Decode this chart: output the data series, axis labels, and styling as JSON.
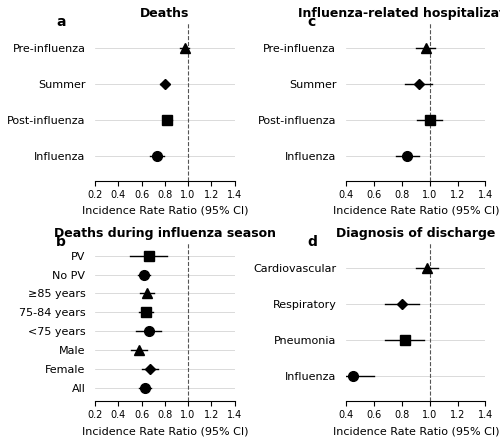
{
  "panel_a": {
    "title": "Deaths",
    "label": "a",
    "categories": [
      "Pre-influenza",
      "Summer",
      "Post-influenza",
      "Influenza"
    ],
    "markers": [
      "^",
      "D",
      "s",
      "o"
    ],
    "point": [
      0.97,
      0.8,
      0.82,
      0.73
    ],
    "ci_low": [
      0.93,
      0.76,
      0.78,
      0.67
    ],
    "ci_high": [
      1.01,
      0.84,
      0.86,
      0.79
    ],
    "xlim": [
      0.2,
      1.4
    ],
    "xticks": [
      0.2,
      0.4,
      0.6,
      0.8,
      1.0,
      1.2,
      1.4
    ],
    "vline": 1.0,
    "xlabel": "Incidence Rate Ratio (95% CI)"
  },
  "panel_b": {
    "title": "Deaths during influenza season",
    "label": "b",
    "categories": [
      "PV",
      "No PV",
      "≥85 years",
      "75-84 years",
      "<75 years",
      "Male",
      "Female",
      "All"
    ],
    "markers": [
      "s",
      "o",
      "^",
      "s",
      "o",
      "^",
      "D",
      "o"
    ],
    "point": [
      0.66,
      0.62,
      0.65,
      0.64,
      0.66,
      0.58,
      0.67,
      0.63
    ],
    "ci_low": [
      0.5,
      0.57,
      0.59,
      0.58,
      0.55,
      0.51,
      0.6,
      0.58
    ],
    "ci_high": [
      0.82,
      0.67,
      0.71,
      0.7,
      0.77,
      0.65,
      0.74,
      0.68
    ],
    "xlim": [
      0.2,
      1.4
    ],
    "xticks": [
      0.2,
      0.4,
      0.6,
      0.8,
      1.0,
      1.2,
      1.4
    ],
    "vline": 1.0,
    "xlabel": "Incidence Rate Ratio (95% CI)"
  },
  "panel_c": {
    "title": "Influenza-related hospitalizations",
    "label": "c",
    "categories": [
      "Pre-influenza",
      "Summer",
      "Post-influenza",
      "Influenza"
    ],
    "markers": [
      "^",
      "D",
      "s",
      "o"
    ],
    "point": [
      0.97,
      0.92,
      1.0,
      0.84
    ],
    "ci_low": [
      0.9,
      0.82,
      0.91,
      0.76
    ],
    "ci_high": [
      1.04,
      1.02,
      1.09,
      0.92
    ],
    "xlim": [
      0.4,
      1.4
    ],
    "xticks": [
      0.4,
      0.6,
      0.8,
      1.0,
      1.2,
      1.4
    ],
    "vline": 1.0,
    "xlabel": "Incidence Rate Ratio (95% CI)"
  },
  "panel_d": {
    "title": "Diagnosis of discharge",
    "label": "d",
    "categories": [
      "Cardiovascular",
      "Respiratory",
      "Pneumonia",
      "Influenza"
    ],
    "markers": [
      "^",
      "D",
      "s",
      "o"
    ],
    "point": [
      0.98,
      0.8,
      0.82,
      0.45
    ],
    "ci_low": [
      0.9,
      0.68,
      0.68,
      0.3
    ],
    "ci_high": [
      1.06,
      0.92,
      0.96,
      0.6
    ],
    "xlim": [
      0.4,
      1.4
    ],
    "xticks": [
      0.4,
      0.6,
      0.8,
      1.0,
      1.2,
      1.4
    ],
    "vline": 1.0,
    "xlabel": "Incidence Rate Ratio (95% CI)"
  },
  "figure_bg": "#ffffff",
  "marker_color": "#000000",
  "marker_size": 7,
  "line_color": "#000000",
  "grid_color": "#cccccc",
  "title_fontsize": 9,
  "label_fontsize": 8,
  "tick_fontsize": 7,
  "panel_label_fontsize": 10
}
